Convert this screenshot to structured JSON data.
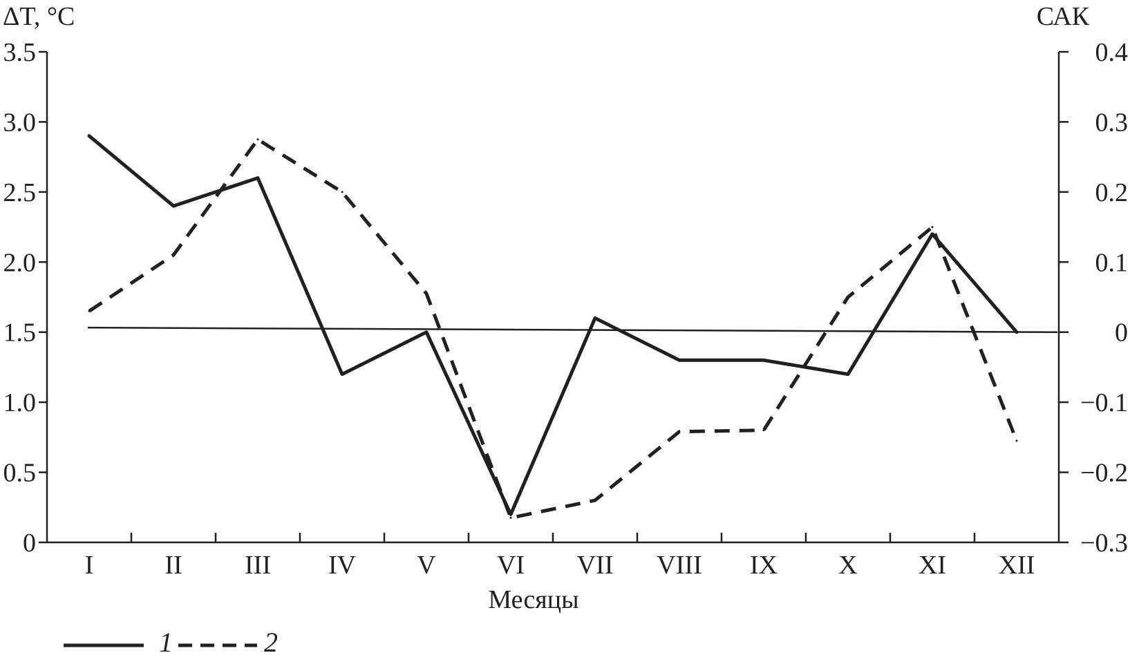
{
  "chart_data": {
    "type": "line",
    "x": [
      "I",
      "II",
      "III",
      "IV",
      "V",
      "VI",
      "VII",
      "VIII",
      "IX",
      "X",
      "XI",
      "XII"
    ],
    "xlabel": "Месяцы",
    "ylabel_left": "ΔT, °C",
    "ylabel_right": "САК",
    "ylim_left": [
      0,
      3.5
    ],
    "ylim_right": [
      -0.3,
      0.4
    ],
    "yticks_left": [
      "0",
      "0.5",
      "1.0",
      "1.5",
      "2.0",
      "2.5",
      "3.0",
      "3.5"
    ],
    "yticks_right": [
      "−0.3",
      "−0.2",
      "−0.1",
      "0",
      "0.1",
      "0.2",
      "0.3",
      "0.4"
    ],
    "grid": false,
    "legend_position": "bottom-left",
    "series": [
      {
        "name": "1",
        "axis": "left",
        "style": "solid",
        "color": "#231f20",
        "values": [
          2.9,
          2.4,
          2.6,
          1.2,
          1.5,
          0.2,
          1.6,
          1.3,
          1.3,
          1.2,
          2.2,
          1.5
        ]
      },
      {
        "name": "2",
        "axis": "right",
        "style": "dashed",
        "color": "#231f20",
        "values": [
          0.03,
          0.11,
          0.275,
          0.2,
          0.055,
          -0.265,
          -0.24,
          -0.142,
          -0.14,
          0.05,
          0.15,
          -0.155
        ]
      }
    ],
    "reference_line": {
      "axis": "right",
      "value_start": 0.0065,
      "value_end": 0.0
    }
  }
}
